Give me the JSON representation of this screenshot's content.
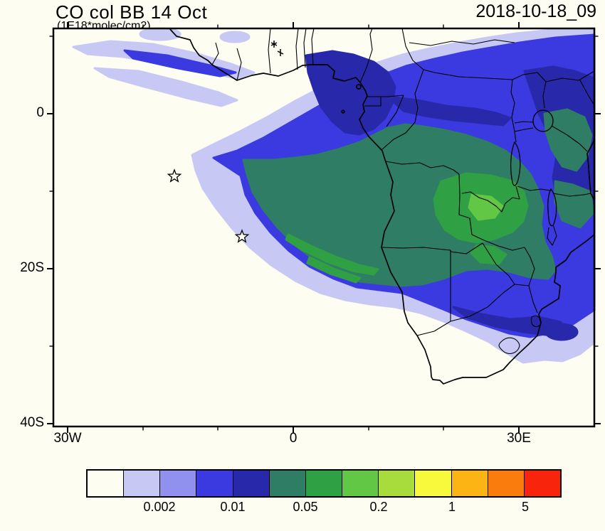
{
  "header": {
    "title": "CO col BB 14 Oct",
    "subtitle": "(1E18*molec/cm2)",
    "date": "2018-10-18_09"
  },
  "map": {
    "y_axis_labels": [
      "0",
      "20S",
      "40S"
    ],
    "x_axis_labels": [
      "30W",
      "0",
      "30E"
    ],
    "region": "Africa and tropical Atlantic",
    "markers": [
      {
        "symbol": "star",
        "approx_lon": "16W",
        "approx_lat": "8S"
      },
      {
        "symbol": "star",
        "approx_lon": "7W",
        "approx_lat": "16S"
      }
    ]
  },
  "colorbar": {
    "labels": [
      "0.002",
      "0.01",
      "0.05",
      "0.2",
      "1",
      "5"
    ],
    "colors": [
      "#fdfdf2",
      "#c8c8f4",
      "#9090ee",
      "#3a3ae0",
      "#2828aa",
      "#2e7d64",
      "#2fa044",
      "#63c746",
      "#a8dc3c",
      "#f8f83c",
      "#fcb314",
      "#f97c0c",
      "#f8240c"
    ]
  }
}
